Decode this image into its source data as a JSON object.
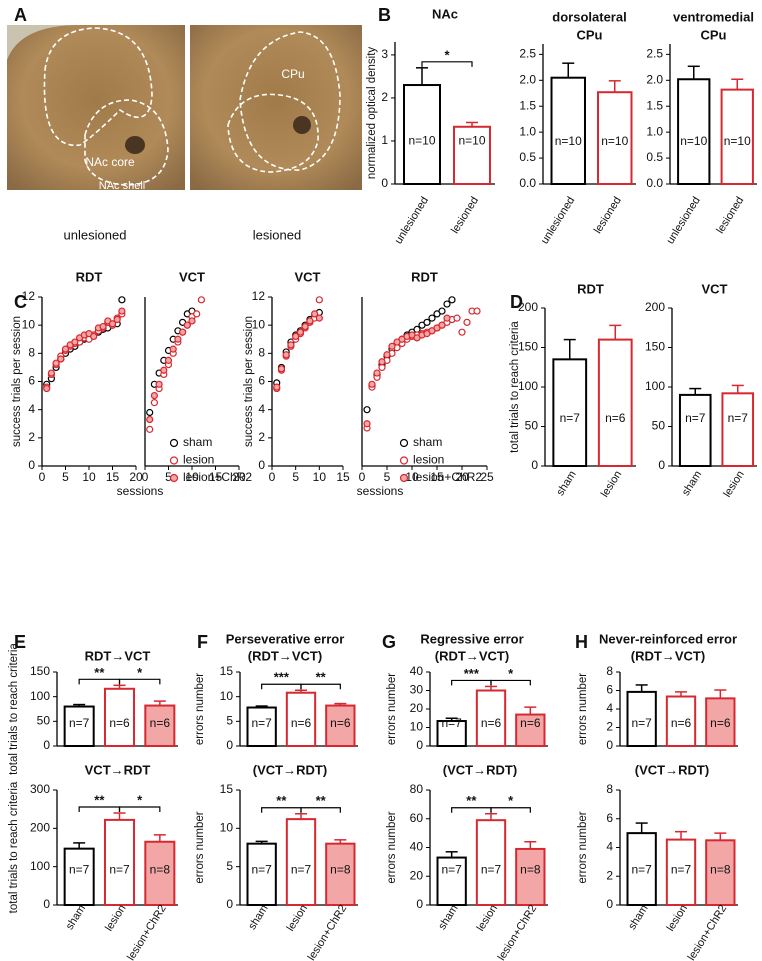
{
  "figure": {
    "panel_labels": [
      "A",
      "B",
      "C",
      "D",
      "E",
      "F",
      "G",
      "H"
    ],
    "images": [
      {
        "caption": "unlesioned",
        "labels": [
          "NAc core",
          "NAc shell"
        ]
      },
      {
        "caption": "lesioned",
        "labels": [
          "CPu"
        ]
      }
    ]
  },
  "chart_data": [
    {
      "type": "bar",
      "title": "NAc",
      "ylabel": "normalized optical density",
      "categories": [
        "unlesioned",
        "lesioned"
      ],
      "values": [
        2.3,
        1.33
      ],
      "errors": [
        0.4,
        0.1
      ],
      "n_labels": [
        "n=10",
        "n=10"
      ],
      "significance": [
        "*"
      ],
      "colors": [
        "#000000",
        "#d7282f"
      ],
      "fill_colors": [
        "#ffffff",
        "#ffffff"
      ],
      "ylim": [
        0,
        3.3
      ],
      "yticks": [
        0,
        1,
        2,
        3
      ]
    },
    {
      "type": "bar",
      "title": "dorsolateral",
      "subtitle": "CPu",
      "categories": [
        "unlesioned",
        "lesioned"
      ],
      "values": [
        2.05,
        1.77
      ],
      "errors": [
        0.28,
        0.22
      ],
      "n_labels": [
        "n=10",
        "n=10"
      ],
      "colors": [
        "#000000",
        "#d7282f"
      ],
      "fill_colors": [
        "#ffffff",
        "#ffffff"
      ],
      "ylim": [
        0,
        2.7
      ],
      "yticks": [
        {
          "value": 0,
          "label": "0.0"
        },
        0.5,
        {
          "value": 1,
          "label": "1.0"
        },
        1.5,
        {
          "value": 2,
          "label": "2.0"
        },
        2.5
      ]
    },
    {
      "type": "bar",
      "title": "ventromedial",
      "subtitle": "CPu",
      "categories": [
        "unlesioned",
        "lesioned"
      ],
      "values": [
        2.02,
        1.82
      ],
      "errors": [
        0.25,
        0.2
      ],
      "n_labels": [
        "n=10",
        "n=10"
      ],
      "colors": [
        "#000000",
        "#d7282f"
      ],
      "fill_colors": [
        "#ffffff",
        "#ffffff"
      ],
      "ylim": [
        0,
        2.7
      ],
      "yticks": [
        {
          "value": 0,
          "label": "0.0"
        },
        0.5,
        {
          "value": 1,
          "label": "1.0"
        },
        1.5,
        {
          "value": 2,
          "label": "2.0"
        },
        2.5
      ]
    },
    {
      "type": "scatter",
      "title": "RDT",
      "ylabel": "success trials per session",
      "xlabel": "sessions",
      "x": [
        1,
        2,
        3,
        4,
        5,
        6,
        7,
        8,
        9,
        10,
        11,
        12,
        13,
        14,
        15,
        16,
        17
      ],
      "xlim": [
        0,
        20
      ],
      "xticks": [
        0,
        5,
        10,
        15,
        20
      ],
      "ylim": [
        0,
        12
      ],
      "yticks": [
        0,
        2,
        4,
        6,
        8,
        10,
        12
      ],
      "series": [
        {
          "color": "#000000",
          "fill": "#ffffff",
          "values": [
            5.8,
            6.2,
            7.0,
            7.6,
            8.0,
            8.3,
            8.5,
            8.8,
            9.0,
            9.2,
            9.3,
            9.5,
            9.7,
            9.8,
            10.0,
            10.1,
            11.8
          ]
        },
        {
          "color": "#d7282f",
          "fill": "#ffffff",
          "values": [
            5.6,
            6.5,
            7.2,
            7.8,
            8.2,
            8.5,
            8.7,
            8.8,
            9.1,
            9.0,
            9.3,
            9.6,
            9.8,
            10.2,
            10.0,
            10.5,
            10.8
          ]
        },
        {
          "color": "#d7282f",
          "fill": "#f2a6a6",
          "values": [
            5.5,
            6.6,
            7.3,
            7.6,
            8.3,
            8.6,
            8.8,
            9.1,
            9.3,
            9.4,
            9.2,
            9.8,
            9.9,
            10.3,
            10.1,
            10.4,
            11.0
          ]
        }
      ]
    },
    {
      "type": "scatter",
      "title": "VCT",
      "x": [
        1,
        2,
        3,
        4,
        5,
        6,
        7,
        8,
        9,
        10,
        11,
        12
      ],
      "xlim": [
        0,
        20
      ],
      "xticks": [
        0,
        5,
        10,
        15,
        20
      ],
      "ylim": [
        0,
        12
      ],
      "legend": true,
      "series": [
        {
          "name": "sham",
          "color": "#000000",
          "fill": "#ffffff",
          "values": [
            3.8,
            5.8,
            6.6,
            7.5,
            8.2,
            9.0,
            9.6,
            10.2,
            10.8,
            11.0,
            null,
            null
          ]
        },
        {
          "name": "lesion",
          "color": "#d7282f",
          "fill": "#ffffff",
          "values": [
            2.6,
            4.5,
            5.5,
            6.5,
            7.2,
            8.0,
            8.8,
            9.5,
            10.0,
            10.6,
            10.8,
            11.8
          ]
        },
        {
          "name": "lesion+ChR2",
          "color": "#d7282f",
          "fill": "#f2a6a6",
          "values": [
            3.3,
            5.0,
            5.8,
            6.8,
            7.5,
            8.3,
            9.0,
            9.5,
            10.0,
            10.3,
            null,
            null
          ]
        }
      ]
    },
    {
      "type": "scatter",
      "title": "VCT",
      "ylabel": "success trials per session",
      "xlabel": "sessions",
      "x": [
        1,
        2,
        3,
        4,
        5,
        6,
        7,
        8,
        9,
        10
      ],
      "xlim": [
        0,
        15
      ],
      "xticks": [
        0,
        5,
        10,
        15
      ],
      "ylim": [
        0,
        12
      ],
      "yticks": [
        0,
        2,
        4,
        6,
        8,
        10,
        12
      ],
      "series": [
        {
          "color": "#000000",
          "fill": "#ffffff",
          "values": [
            5.9,
            7.0,
            8.1,
            8.8,
            9.3,
            9.6,
            10.0,
            10.4,
            10.6,
            10.9
          ]
        },
        {
          "color": "#d7282f",
          "fill": "#ffffff",
          "values": [
            5.5,
            6.8,
            7.8,
            8.5,
            9.0,
            9.4,
            9.8,
            10.2,
            10.5,
            11.8
          ]
        },
        {
          "color": "#d7282f",
          "fill": "#f2a6a6",
          "values": [
            5.6,
            6.9,
            7.9,
            8.6,
            9.2,
            9.5,
            9.9,
            10.3,
            10.8,
            10.5
          ]
        }
      ]
    },
    {
      "type": "scatter",
      "title": "RDT",
      "x": [
        1,
        2,
        3,
        4,
        5,
        6,
        7,
        8,
        9,
        10,
        11,
        12,
        13,
        14,
        15,
        16,
        17,
        18,
        19,
        20,
        21,
        22,
        23
      ],
      "xlim": [
        0,
        25
      ],
      "xticks": [
        0,
        5,
        10,
        15,
        20,
        25
      ],
      "ylim": [
        0,
        12
      ],
      "legend": true,
      "series": [
        {
          "name": "sham",
          "color": "#000000",
          "fill": "#ffffff",
          "values": [
            4.0,
            5.7,
            6.5,
            7.2,
            7.8,
            8.3,
            8.7,
            9.0,
            9.3,
            9.5,
            9.7,
            10.0,
            10.2,
            10.5,
            10.8,
            11.0,
            11.5,
            11.8,
            null,
            null,
            null,
            null,
            null
          ]
        },
        {
          "name": "lesion",
          "color": "#d7282f",
          "fill": "#ffffff",
          "values": [
            2.7,
            5.6,
            6.3,
            7.0,
            7.5,
            8.0,
            8.4,
            8.7,
            9.0,
            9.2,
            9.3,
            9.4,
            9.5,
            9.6,
            9.8,
            10.0,
            10.2,
            10.4,
            10.5,
            9.5,
            10.2,
            11.0,
            11.0
          ]
        },
        {
          "name": "lesion+ChR2",
          "color": "#d7282f",
          "fill": "#f2a6a6",
          "values": [
            3.0,
            5.8,
            6.6,
            7.4,
            7.9,
            8.5,
            8.8,
            9.0,
            9.2,
            9.3,
            9.1,
            9.3,
            9.4,
            9.6,
            9.8,
            10.0,
            10.5,
            null,
            null,
            null,
            null,
            null,
            null
          ]
        }
      ]
    },
    {
      "type": "bar",
      "title": "RDT",
      "ylabel": "total trials to reach criteria",
      "categories": [
        "sham",
        "lesion"
      ],
      "values": [
        135,
        160
      ],
      "errors": [
        25,
        18
      ],
      "n_labels": [
        "n=7",
        "n=6"
      ],
      "colors": [
        "#000000",
        "#d7282f"
      ],
      "fill_colors": [
        "#ffffff",
        "#ffffff"
      ],
      "ylim": [
        0,
        200
      ],
      "yticks": [
        0,
        50,
        100,
        150,
        200
      ]
    },
    {
      "type": "bar",
      "title": "VCT",
      "categories": [
        "sham",
        "lesion"
      ],
      "values": [
        90,
        92
      ],
      "errors": [
        8,
        10
      ],
      "n_labels": [
        "n=7",
        "n=7"
      ],
      "colors": [
        "#000000",
        "#d7282f"
      ],
      "fill_colors": [
        "#ffffff",
        "#ffffff"
      ],
      "ylim": [
        0,
        200
      ],
      "yticks": [
        0,
        50,
        100,
        150,
        200
      ]
    },
    {
      "type": "bar",
      "title": "RDT→VCT",
      "ylabel": "total trials to reach criteria",
      "values": [
        80,
        116,
        82
      ],
      "errors": [
        4,
        7,
        9
      ],
      "n_labels": [
        "n=7",
        "n=6",
        "n=6"
      ],
      "significance": [
        "**",
        "*"
      ],
      "colors": [
        "#000000",
        "#d7282f",
        "#d7282f"
      ],
      "fill_colors": [
        "#ffffff",
        "#ffffff",
        "#f2a6a6"
      ],
      "ylim": [
        0,
        150
      ],
      "yticks": [
        0,
        50,
        100,
        150
      ]
    },
    {
      "type": "bar",
      "title": "VCT→RDT",
      "ylabel": "total trials to reach criteria",
      "categories": [
        "sham",
        "lesion",
        "lesion+ChR2"
      ],
      "values": [
        147,
        222,
        165
      ],
      "errors": [
        15,
        18,
        18
      ],
      "n_labels": [
        "n=7",
        "n=7",
        "n=8"
      ],
      "significance": [
        "**",
        "*"
      ],
      "colors": [
        "#000000",
        "#d7282f",
        "#d7282f"
      ],
      "fill_colors": [
        "#ffffff",
        "#ffffff",
        "#f2a6a6"
      ],
      "ylim": [
        0,
        300
      ],
      "yticks": [
        0,
        100,
        200,
        300
      ]
    },
    {
      "type": "bar",
      "title": "Perseverative error",
      "subtitle": "(RDT→VCT)",
      "ylabel": "errors number",
      "values": [
        7.8,
        10.8,
        8.2
      ],
      "errors": [
        0.3,
        0.5,
        0.4
      ],
      "n_labels": [
        "n=7",
        "n=6",
        "n=6"
      ],
      "significance": [
        "***",
        "**"
      ],
      "colors": [
        "#000000",
        "#d7282f",
        "#d7282f"
      ],
      "fill_colors": [
        "#ffffff",
        "#ffffff",
        "#f2a6a6"
      ],
      "ylim": [
        0,
        15
      ],
      "yticks": [
        0,
        5,
        10,
        15
      ]
    },
    {
      "type": "bar",
      "title": "(VCT→RDT)",
      "ylabel": "errors number",
      "categories": [
        "sham",
        "lesion",
        "lesion+ChR2"
      ],
      "values": [
        8.0,
        11.2,
        8.0
      ],
      "errors": [
        0.3,
        0.7,
        0.5
      ],
      "n_labels": [
        "n=7",
        "n=7",
        "n=8"
      ],
      "significance": [
        "**",
        "**"
      ],
      "colors": [
        "#000000",
        "#d7282f",
        "#d7282f"
      ],
      "fill_colors": [
        "#ffffff",
        "#ffffff",
        "#f2a6a6"
      ],
      "ylim": [
        0,
        15
      ],
      "yticks": [
        0,
        5,
        10,
        15
      ]
    },
    {
      "type": "bar",
      "title": "Regressive error",
      "subtitle": "(RDT→VCT)",
      "ylabel": "errors number",
      "values": [
        13.5,
        30,
        17
      ],
      "errors": [
        1.5,
        2.2,
        4
      ],
      "n_labels": [
        "n=7",
        "n=6",
        "n=6"
      ],
      "significance": [
        "***",
        "*"
      ],
      "colors": [
        "#000000",
        "#d7282f",
        "#d7282f"
      ],
      "fill_colors": [
        "#ffffff",
        "#ffffff",
        "#f2a6a6"
      ],
      "ylim": [
        0,
        40
      ],
      "yticks": [
        0,
        10,
        20,
        30,
        40
      ]
    },
    {
      "type": "bar",
      "title": "(VCT→RDT)",
      "ylabel": "errors number",
      "categories": [
        "sham",
        "lesion",
        "lesion+ChR2"
      ],
      "values": [
        33,
        59,
        39
      ],
      "errors": [
        4,
        4.5,
        5
      ],
      "n_labels": [
        "n=7",
        "n=7",
        "n=8"
      ],
      "significance": [
        "**",
        "*"
      ],
      "colors": [
        "#000000",
        "#d7282f",
        "#d7282f"
      ],
      "fill_colors": [
        "#ffffff",
        "#ffffff",
        "#f2a6a6"
      ],
      "ylim": [
        0,
        80
      ],
      "yticks": [
        0,
        20,
        40,
        60,
        80
      ]
    },
    {
      "type": "bar",
      "title": "Never-reinforced error",
      "subtitle": "(RDT→VCT)",
      "ylabel": "errors number",
      "values": [
        5.85,
        5.35,
        5.15
      ],
      "errors": [
        0.75,
        0.5,
        0.9
      ],
      "n_labels": [
        "n=7",
        "n=6",
        "n=6"
      ],
      "colors": [
        "#000000",
        "#d7282f",
        "#d7282f"
      ],
      "fill_colors": [
        "#ffffff",
        "#ffffff",
        "#f2a6a6"
      ],
      "ylim": [
        0,
        8
      ],
      "yticks": [
        0,
        2,
        4,
        6,
        8
      ]
    },
    {
      "type": "bar",
      "title": "(VCT→RDT)",
      "ylabel": "errors number",
      "categories": [
        "sham",
        "lesion",
        "lesion+ChR2"
      ],
      "values": [
        5.0,
        4.55,
        4.5
      ],
      "errors": [
        0.7,
        0.55,
        0.5
      ],
      "n_labels": [
        "n=7",
        "n=7",
        "n=8"
      ],
      "colors": [
        "#000000",
        "#d7282f",
        "#d7282f"
      ],
      "fill_colors": [
        "#ffffff",
        "#ffffff",
        "#f2a6a6"
      ],
      "ylim": [
        0,
        8
      ],
      "yticks": [
        0,
        2,
        4,
        6,
        8
      ]
    }
  ]
}
